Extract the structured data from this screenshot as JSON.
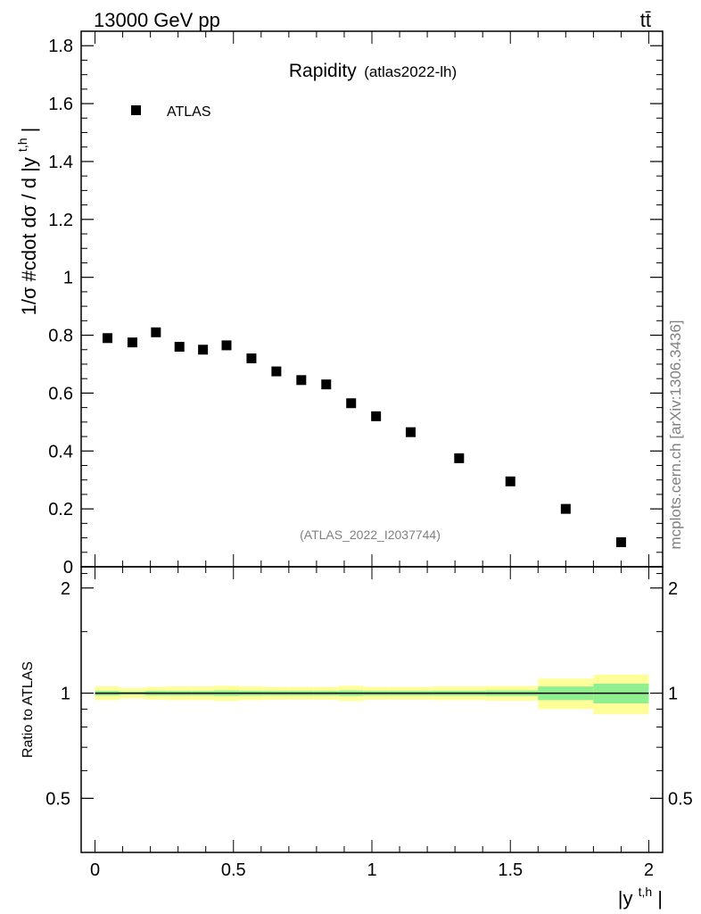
{
  "header": {
    "left": "13000 GeV pp",
    "right": "tt̄"
  },
  "side_label": "mcplots.cern.ch [arXiv:1306.3436]",
  "chart_data": [
    {
      "type": "scatter",
      "title": "Rapidity",
      "subtitle": "(atlas2022-lh)",
      "ylabel": "1/σ #cdot dσ / d |y",
      "ylabel_sup": "t,h",
      "ylabel_end": "|",
      "xlim": [
        -0.05,
        2.05
      ],
      "ylim": [
        0,
        1.85
      ],
      "yticks": [
        0,
        0.2,
        0.4,
        0.6,
        0.8,
        1,
        1.2,
        1.4,
        1.6,
        1.8
      ],
      "ytick_labels": [
        "0",
        "0.2",
        "0.4",
        "0.6",
        "0.8",
        "1",
        "1.2",
        "1.4",
        "1.6",
        "1.8"
      ],
      "legend_position": "top-left",
      "watermark": "(ATLAS_2022_I2037744)",
      "series": [
        {
          "name": "ATLAS",
          "color": "#000000",
          "marker": "square",
          "x": [
            0.045,
            0.135,
            0.22,
            0.305,
            0.39,
            0.475,
            0.565,
            0.655,
            0.745,
            0.835,
            0.925,
            1.015,
            1.14,
            1.315,
            1.5,
            1.7,
            1.9
          ],
          "y": [
            0.79,
            0.775,
            0.81,
            0.76,
            0.75,
            0.765,
            0.72,
            0.675,
            0.645,
            0.63,
            0.565,
            0.52,
            0.465,
            0.375,
            0.295,
            0.2,
            0.085
          ]
        }
      ]
    },
    {
      "type": "area",
      "ylabel": "Ratio to ATLAS",
      "xlabel": "|y",
      "xlabel_sup": "t,h",
      "xlabel_end": "|",
      "xlim": [
        -0.05,
        2.05
      ],
      "ylim": [
        0.35,
        2.3
      ],
      "xticks": [
        0,
        0.5,
        1,
        1.5,
        2
      ],
      "xtick_labels": [
        "0",
        "0.5",
        "1",
        "1.5",
        "2"
      ],
      "yticks": [
        0.5,
        1,
        2
      ],
      "ytick_labels": [
        "0.5",
        "1",
        "2"
      ],
      "bins": [
        0,
        0.09,
        0.18,
        0.26,
        0.35,
        0.43,
        0.52,
        0.61,
        0.7,
        0.79,
        0.88,
        0.97,
        1.06,
        1.22,
        1.41,
        1.6,
        1.8,
        2.0
      ],
      "band_inner": {
        "color": "#90f090",
        "low": [
          0.985,
          0.99,
          0.985,
          0.985,
          0.985,
          0.982,
          0.984,
          0.985,
          0.985,
          0.985,
          0.982,
          0.985,
          0.985,
          0.984,
          0.982,
          0.955,
          0.935
        ],
        "high": [
          1.015,
          1.01,
          1.015,
          1.015,
          1.015,
          1.018,
          1.016,
          1.015,
          1.015,
          1.015,
          1.018,
          1.015,
          1.015,
          1.016,
          1.018,
          1.045,
          1.065
        ]
      },
      "band_outer": {
        "color": "#ffff99",
        "low": [
          0.955,
          0.965,
          0.958,
          0.955,
          0.955,
          0.95,
          0.955,
          0.958,
          0.958,
          0.958,
          0.95,
          0.958,
          0.958,
          0.955,
          0.952,
          0.9,
          0.87
        ],
        "high": [
          1.045,
          1.035,
          1.042,
          1.045,
          1.045,
          1.05,
          1.045,
          1.042,
          1.042,
          1.042,
          1.05,
          1.042,
          1.042,
          1.045,
          1.048,
          1.1,
          1.13
        ]
      },
      "reference": 1
    }
  ]
}
